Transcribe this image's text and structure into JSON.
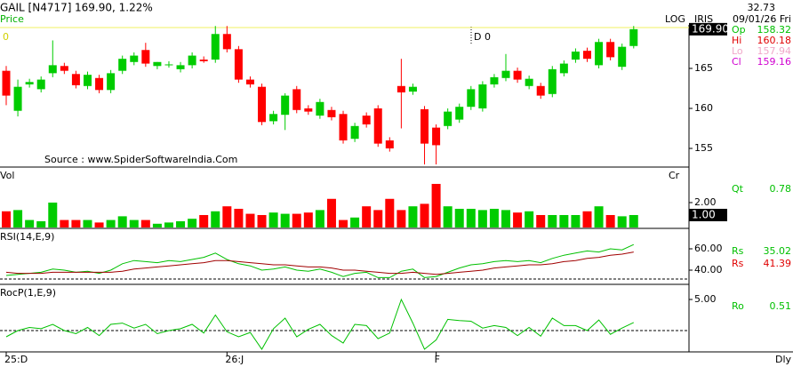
{
  "header": {
    "symbol": "GAIL [N4717]",
    "quote": "169.90, 1.22%",
    "mode": "LOG",
    "name": "IRIS",
    "top_value": "32.73",
    "date": "09/01/26 Fri",
    "period": "Dly"
  },
  "readouts": [
    {
      "label": "Op",
      "value": "158.32",
      "color": "#00c000"
    },
    {
      "label": "Hi",
      "value": "160.18",
      "color": "#e00000"
    },
    {
      "label": "Lo",
      "value": "157.94",
      "color": "#f0a8c8"
    },
    {
      "label": "Cl",
      "value": "159.16",
      "color": "#d000d0"
    },
    {
      "label": "Qt",
      "value": "0.78",
      "color": "#00c000"
    },
    {
      "label": "Rs",
      "value": "35.02",
      "color": "#00c000"
    },
    {
      "label": "Rs",
      "value": "41.39",
      "color": "#e00000"
    },
    {
      "label": "Ro",
      "value": "0.51",
      "color": "#00c000"
    }
  ],
  "chart_data": [
    {
      "type": "candlestick",
      "title": "Price",
      "annotations": [
        "0",
        "D 0"
      ],
      "source": "Source : www.SpiderSoftwareIndia.Com",
      "categories": [
        "25:D",
        null,
        null,
        null,
        null,
        null,
        null,
        null,
        null,
        null,
        null,
        null,
        null,
        null,
        null,
        null,
        null,
        null,
        null,
        "26:J",
        null,
        null,
        null,
        null,
        null,
        null,
        null,
        null,
        null,
        null,
        null,
        null,
        null,
        null,
        null,
        null,
        null,
        "F",
        null,
        null,
        null,
        null,
        null,
        null,
        null,
        null,
        null,
        null,
        null,
        null,
        null,
        null,
        null,
        null,
        null
      ],
      "open": [
        164.7,
        159.7,
        163,
        162.4,
        164.4,
        165.3,
        164.3,
        162.8,
        163.8,
        162.3,
        164.7,
        165.8,
        167.3,
        165.3,
        165.5,
        164.9,
        165.4,
        166.1,
        166.1,
        169.3,
        167.4,
        163.6,
        162.7,
        158.4,
        159.2,
        162.4,
        160,
        159.1,
        159.8,
        159.3,
        156.2,
        159.1,
        160,
        156,
        162.8,
        162.1,
        159.9,
        157.6,
        157.8,
        158.6,
        160.2,
        160,
        163,
        163.8,
        164.7,
        162.8,
        162.8,
        161.8,
        164.4,
        166.1,
        167.2,
        165.4,
        168.3,
        165.2,
        167.8
      ],
      "high": [
        165.3,
        163.6,
        163.7,
        164,
        168.5,
        165.7,
        164.7,
        164.6,
        164.2,
        164.8,
        166.6,
        167,
        168.2,
        165.8,
        165.9,
        165.8,
        167,
        166.5,
        170.3,
        170.3,
        167.8,
        164,
        163.1,
        159.7,
        161.9,
        162.8,
        160.4,
        161.2,
        160.2,
        159.7,
        158.2,
        159.5,
        160.4,
        156.4,
        166.2,
        163.1,
        160.3,
        158,
        160,
        160.6,
        162.8,
        163.4,
        164.3,
        166.8,
        165.1,
        164.1,
        163.2,
        165.3,
        166,
        167.5,
        167.6,
        168.7,
        168.7,
        168.1,
        170.3
      ],
      "low": [
        160.4,
        159,
        162.6,
        162,
        163.9,
        164.3,
        162.5,
        162.4,
        161.9,
        161.9,
        164.3,
        165.4,
        165.2,
        164.9,
        165.1,
        164.5,
        165,
        165.7,
        165.7,
        167,
        163.2,
        162.6,
        157.9,
        158,
        157.3,
        159.4,
        159.2,
        158.7,
        158.5,
        155.6,
        155.8,
        157.6,
        155.2,
        154.6,
        157.5,
        161.7,
        153,
        153,
        157.4,
        158.2,
        159.8,
        159.6,
        162.6,
        163.4,
        163.2,
        162.4,
        161.2,
        161.4,
        164,
        165.7,
        165.8,
        165,
        166,
        164.8,
        167.5
      ],
      "close": [
        161.6,
        162.7,
        163.3,
        163.6,
        165.4,
        164.7,
        162.9,
        164.2,
        162.3,
        164.4,
        166.2,
        166.6,
        165.6,
        165.8,
        165.5,
        165.4,
        166.6,
        165.9,
        169.3,
        167.4,
        163.6,
        163,
        158.3,
        159.3,
        161.6,
        159.8,
        159.6,
        160.8,
        158.9,
        156,
        157.8,
        158,
        155.6,
        155,
        162,
        162.7,
        155.6,
        155.4,
        159.6,
        160.2,
        162.4,
        163,
        163.9,
        164.7,
        163.6,
        163.7,
        161.6,
        164.9,
        165.6,
        167.1,
        166.2,
        168.3,
        166.4,
        167.7,
        169.9
      ],
      "up_color": "#00cc00",
      "down_color": "#ff0000",
      "ylim": [
        152.67,
        170.44
      ],
      "yticks": [
        155,
        160,
        165
      ],
      "reference_line": 170.1,
      "reference_color": "#f0f060",
      "current": {
        "value": 169.9,
        "label": "169.90"
      }
    },
    {
      "type": "volume",
      "title": "Vol",
      "extra_label": "Cr",
      "values": [
        1.3,
        1.4,
        0.6,
        0.5,
        2,
        0.6,
        0.6,
        0.6,
        0.4,
        0.6,
        0.9,
        0.6,
        0.6,
        0.3,
        0.4,
        0.5,
        0.7,
        1,
        1.3,
        1.7,
        1.5,
        1.1,
        1,
        1.2,
        1.1,
        1.1,
        1.2,
        1.4,
        2.3,
        0.6,
        0.8,
        1.7,
        1.4,
        2.3,
        1.4,
        1.7,
        1.9,
        3.5,
        1.7,
        1.5,
        1.5,
        1.4,
        1.5,
        1.4,
        1.2,
        1.3,
        1.0,
        1.0,
        1.0,
        1.0,
        1.3,
        1.7,
        1.0,
        0.9,
        1.0
      ],
      "ylim": [
        0,
        4.71
      ],
      "yticks": [
        {
          "value": 2,
          "label": "2.00"
        }
      ],
      "current": {
        "value": 1,
        "label": "1.00"
      }
    },
    {
      "type": "line",
      "title": "RSI(14,E,9)",
      "series": [
        {
          "name": "RSI",
          "color": "#00c000",
          "values": [
            35,
            36,
            37,
            38,
            41,
            40,
            38,
            39,
            37,
            40,
            46,
            49,
            48,
            47,
            49,
            48,
            50,
            52,
            56,
            50,
            46,
            44,
            40,
            41,
            43,
            40,
            39,
            41,
            38,
            34,
            37,
            38,
            33,
            33,
            39,
            41,
            33,
            34,
            38,
            42,
            45,
            46,
            48,
            49,
            48,
            49,
            47,
            51,
            54,
            56,
            58,
            57,
            60,
            59,
            64
          ]
        },
        {
          "name": "EMA",
          "color": "#a00000",
          "values": [
            38,
            37,
            37,
            37,
            38,
            38,
            38,
            38,
            38,
            38,
            39,
            41,
            42,
            43,
            44,
            45,
            46,
            47,
            49,
            49,
            48,
            47,
            46,
            45,
            45,
            44,
            43,
            43,
            42,
            40,
            40,
            39,
            38,
            37,
            37,
            38,
            37,
            36,
            37,
            38,
            39,
            40,
            42,
            43,
            44,
            45,
            45,
            46,
            48,
            49,
            51,
            52,
            54,
            55,
            57
          ]
        }
      ],
      "ylim": [
        26.7,
        78.3
      ],
      "yticks": [
        {
          "value": 60,
          "label": "60.00"
        },
        {
          "value": 40,
          "label": "40.00"
        }
      ],
      "reference_line": 31.7
    },
    {
      "type": "line",
      "title": "RocP(1,E,9)",
      "series": [
        {
          "name": "RocP",
          "color": "#00c000",
          "values": [
            -1,
            0,
            0.5,
            0.3,
            1,
            0,
            -0.5,
            0.5,
            -0.8,
            1,
            1.2,
            0.4,
            1,
            -0.5,
            0,
            0.3,
            1,
            -0.4,
            2.5,
            -0.2,
            -1,
            -0.3,
            -3,
            0.3,
            2,
            -1,
            0.2,
            1,
            -0.8,
            -2,
            1,
            0.8,
            -1.3,
            -0.4,
            5,
            1.2,
            -3,
            -1.5,
            1.8,
            1.6,
            1.5,
            0.4,
            0.8,
            0.5,
            -0.8,
            0.5,
            -0.9,
            2,
            0.8,
            0.8,
            0,
            1.7,
            -0.6,
            0.4,
            1.3
          ]
        }
      ],
      "ylim": [
        -3.43,
        7.43
      ],
      "yticks": [
        {
          "value": 5,
          "label": "5.00"
        }
      ],
      "reference_line": 0
    }
  ]
}
